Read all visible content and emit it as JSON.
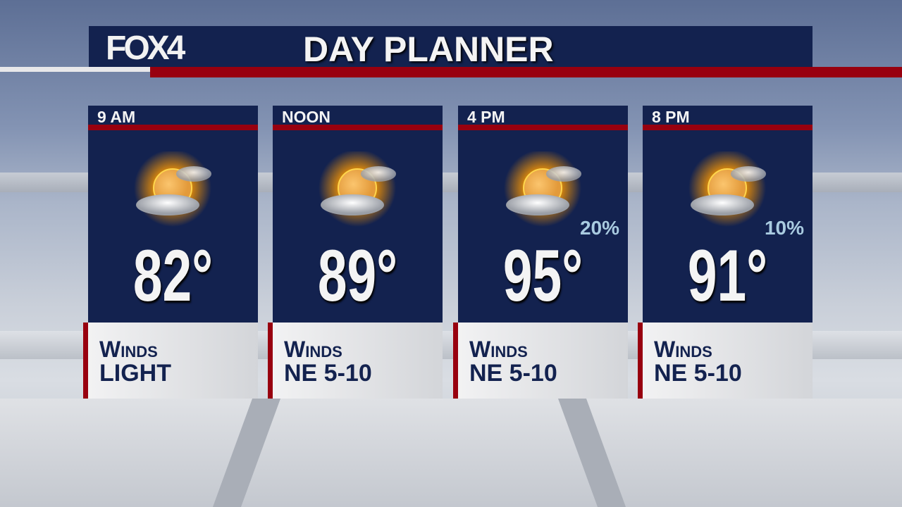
{
  "header": {
    "logo": "FOX4",
    "title": "DAY PLANNER"
  },
  "colors": {
    "navy": "#13224f",
    "red": "#98000f",
    "pop": "#a9cbe0"
  },
  "periods": [
    {
      "time": "9 AM",
      "icon": "partly-sunny-icon",
      "temp": "82°",
      "pop": "",
      "winds_label": "Winds",
      "winds": "LIGHT"
    },
    {
      "time": "NOON",
      "icon": "partly-sunny-icon",
      "temp": "89°",
      "pop": "",
      "winds_label": "Winds",
      "winds": "NE 5-10"
    },
    {
      "time": "4 PM",
      "icon": "partly-sunny-icon",
      "temp": "95°",
      "pop": "20%",
      "winds_label": "Winds",
      "winds": "NE 5-10"
    },
    {
      "time": "8 PM",
      "icon": "partly-sunny-icon",
      "temp": "91°",
      "pop": "10%",
      "winds_label": "Winds",
      "winds": "NE 5-10"
    }
  ]
}
